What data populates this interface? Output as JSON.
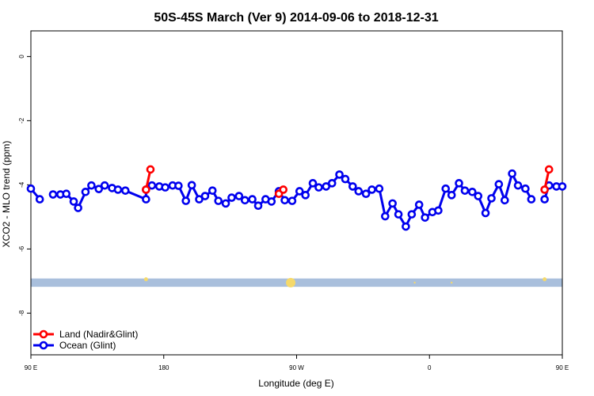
{
  "chart_data": {
    "type": "line",
    "title": "50S-45S March (Ver 9)   2014-09-06 to 2018-12-31",
    "xlabel": "Longitude (deg E)",
    "ylabel": "XCO2 - MLO trend (ppm)",
    "xlim": [
      90,
      450
    ],
    "ylim": [
      -9.3,
      0.8
    ],
    "x_ticks": [
      {
        "value": 90,
        "label": "90 E"
      },
      {
        "value": 180,
        "label": "180"
      },
      {
        "value": 270,
        "label": "90 W"
      },
      {
        "value": 360,
        "label": "0"
      },
      {
        "value": 450,
        "label": "90 E"
      }
    ],
    "y_ticks": [
      {
        "value": 0,
        "label": "0"
      },
      {
        "value": -2,
        "label": "-2"
      },
      {
        "value": -4,
        "label": "-4"
      },
      {
        "value": -6,
        "label": "-6"
      },
      {
        "value": -8,
        "label": "-8"
      }
    ],
    "legend_position": "bottom-left",
    "series": [
      {
        "name": "Land (Nadir&Glint)",
        "color": "#ff0000",
        "segments": [
          [
            [
              168,
              -4.15
            ],
            [
              171,
              -3.52
            ]
          ],
          [
            [
              258,
              -4.28
            ],
            [
              261,
              -4.15
            ]
          ],
          [
            [
              438,
              -4.15
            ],
            [
              441,
              -3.52
            ]
          ]
        ]
      },
      {
        "name": "Ocean (Glint)",
        "color": "#0000ee",
        "segments": [
          [
            [
              90,
              -4.12
            ],
            [
              96,
              -4.45
            ]
          ],
          [
            [
              105,
              -4.3
            ],
            [
              110,
              -4.3
            ],
            [
              114,
              -4.28
            ],
            [
              119,
              -4.52
            ],
            [
              122,
              -4.72
            ],
            [
              127,
              -4.22
            ],
            [
              131,
              -4.02
            ],
            [
              136,
              -4.13
            ],
            [
              140,
              -4.02
            ],
            [
              145,
              -4.1
            ],
            [
              149,
              -4.15
            ],
            [
              154,
              -4.18
            ],
            [
              168,
              -4.45
            ],
            [
              168,
              -4.15
            ],
            [
              172,
              -4.02
            ],
            [
              177,
              -4.05
            ],
            [
              181,
              -4.08
            ],
            [
              186,
              -4.02
            ],
            [
              190,
              -4.03
            ],
            [
              195,
              -4.5
            ],
            [
              199,
              -4.01
            ],
            [
              204,
              -4.45
            ],
            [
              208,
              -4.35
            ],
            [
              213,
              -4.18
            ],
            [
              217,
              -4.5
            ],
            [
              222,
              -4.58
            ],
            [
              226,
              -4.4
            ],
            [
              231,
              -4.35
            ],
            [
              235,
              -4.48
            ],
            [
              240,
              -4.45
            ],
            [
              244,
              -4.65
            ],
            [
              249,
              -4.45
            ],
            [
              253,
              -4.52
            ],
            [
              258,
              -4.2
            ],
            [
              262,
              -4.48
            ],
            [
              267,
              -4.5
            ],
            [
              272,
              -4.2
            ],
            [
              276,
              -4.32
            ],
            [
              281,
              -3.95
            ],
            [
              285,
              -4.08
            ],
            [
              290,
              -4.05
            ],
            [
              294,
              -3.95
            ],
            [
              299,
              -3.68
            ],
            [
              303,
              -3.82
            ],
            [
              308,
              -4.05
            ],
            [
              312,
              -4.2
            ],
            [
              317,
              -4.28
            ],
            [
              321,
              -4.15
            ],
            [
              326,
              -4.12
            ],
            [
              330,
              -4.98
            ],
            [
              335,
              -4.58
            ],
            [
              339,
              -4.92
            ],
            [
              344,
              -5.3
            ],
            [
              348,
              -4.92
            ],
            [
              353,
              -4.62
            ],
            [
              357,
              -5.02
            ],
            [
              362,
              -4.85
            ],
            [
              366,
              -4.8
            ],
            [
              371,
              -4.12
            ],
            [
              375,
              -4.32
            ],
            [
              380,
              -3.95
            ],
            [
              384,
              -4.18
            ],
            [
              389,
              -4.22
            ],
            [
              393,
              -4.35
            ],
            [
              398,
              -4.88
            ],
            [
              402,
              -4.42
            ],
            [
              407,
              -3.98
            ],
            [
              411,
              -4.48
            ],
            [
              416,
              -3.65
            ],
            [
              420,
              -4.02
            ],
            [
              425,
              -4.12
            ],
            [
              429,
              -4.45
            ]
          ],
          [
            [
              438,
              -4.45
            ],
            [
              441,
              -4.02
            ],
            [
              446,
              -4.05
            ],
            [
              450,
              -4.05
            ]
          ]
        ],
        "note_segments_detail": "",
        "extra_segments": [
          [
            [
              98,
              -4.32
            ],
            [
              103,
              -4.28
            ]
          ],
          [
            [
              128,
              -4.28
            ],
            [
              132,
              -4.28
            ],
            [
              136,
              -4.28
            ],
            [
              141,
              -4.55
            ],
            [
              145,
              -4.72
            ],
            [
              150,
              -4.22
            ],
            [
              154,
              -4.02
            ],
            [
              159,
              -4.1
            ],
            [
              163,
              -4.02
            ],
            [
              168,
              -4.08
            ],
            [
              172,
              -4.15
            ],
            [
              177,
              -4.2
            ],
            [
              181,
              -4.42
            ]
          ]
        ]
      }
    ],
    "band": {
      "y_from": -6.92,
      "y_to": -7.18,
      "color": "#a9bfdc"
    },
    "band_markers": [
      {
        "x": 168,
        "size": "small",
        "color": "#f5d96b"
      },
      {
        "x": 266,
        "size": "large",
        "color": "#f5d96b"
      },
      {
        "x": 350,
        "size": "tiny",
        "color": "#f5d96b"
      },
      {
        "x": 375,
        "size": "tiny",
        "color": "#f5d96b"
      },
      {
        "x": 438,
        "size": "small",
        "color": "#f5d96b"
      }
    ]
  }
}
